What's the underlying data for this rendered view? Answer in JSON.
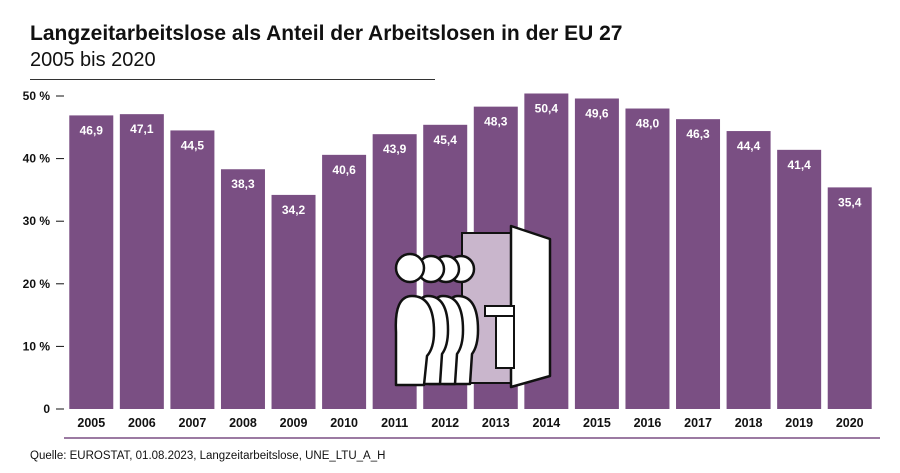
{
  "title": "Langzeitarbeitslose als Anteil der Arbeitslosen in der EU 27",
  "subtitle": "2005 bis 2020",
  "source": "Quelle: EUROSTAT, 01.08.2023, Langzeitarbeitslose, UNE_LTU_A_H",
  "colors": {
    "bar": "#7a4f83",
    "door": "#c9b6cc",
    "axis": "#7a4f83"
  },
  "chart_data": {
    "type": "bar",
    "categories": [
      "2005",
      "2006",
      "2007",
      "2008",
      "2009",
      "2010",
      "2011",
      "2012",
      "2013",
      "2014",
      "2015",
      "2016",
      "2017",
      "2018",
      "2019",
      "2020"
    ],
    "values": [
      46.9,
      47.1,
      44.5,
      38.3,
      34.2,
      40.6,
      43.9,
      45.4,
      48.3,
      50.4,
      49.6,
      48.0,
      46.3,
      44.4,
      41.4,
      35.4
    ],
    "value_labels": [
      "46,9",
      "47,1",
      "44,5",
      "38,3",
      "34,2",
      "40,6",
      "43,9",
      "45,4",
      "48,3",
      "50,4",
      "49,6",
      "48,0",
      "46,3",
      "44,4",
      "41,4",
      "35,4"
    ],
    "ylim": [
      0,
      50
    ],
    "yticks": [
      0,
      10,
      20,
      30,
      40,
      50
    ],
    "ytick_labels": [
      "0",
      "10 %",
      "20 %",
      "30 %",
      "40 %",
      "50 %"
    ],
    "illustration": "people-leaving-through-door-icon"
  }
}
